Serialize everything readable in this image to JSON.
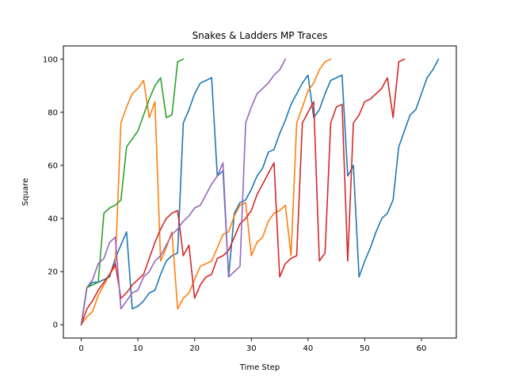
{
  "chart_data": {
    "type": "line",
    "title": "Snakes & Ladders MP Traces",
    "xlabel": "Time Step",
    "ylabel": "Square",
    "xlim": [
      -3.15,
      66.15
    ],
    "ylim": [
      -5,
      105
    ],
    "xticks": [
      0,
      10,
      20,
      30,
      40,
      50,
      60
    ],
    "yticks": [
      0,
      20,
      40,
      60,
      80,
      100
    ],
    "grid": false,
    "series": [
      {
        "color": "#1f77b4",
        "x": [
          0,
          1,
          2,
          3,
          4,
          5,
          6,
          7,
          8,
          9,
          10,
          11,
          12,
          13,
          14,
          15,
          16,
          17,
          18,
          19,
          20,
          21,
          22,
          23,
          24,
          25,
          26,
          27,
          28,
          29,
          30,
          31,
          32,
          33,
          34,
          35,
          36,
          37,
          38,
          39,
          40,
          41,
          42,
          43,
          44,
          45,
          46,
          47,
          48,
          49,
          50,
          51,
          52,
          53,
          54,
          55,
          56,
          57,
          58,
          59,
          60,
          61,
          62,
          63
        ],
        "values": [
          0,
          14,
          16,
          16,
          17,
          18,
          25,
          30,
          35,
          6,
          7,
          9,
          12,
          13,
          19,
          24,
          26,
          27,
          76,
          81,
          87,
          91,
          92,
          93,
          56,
          58,
          18,
          42,
          46,
          47,
          51,
          56,
          59,
          65,
          66,
          72,
          77,
          83,
          87,
          91,
          94,
          78,
          81,
          87,
          92,
          93,
          94,
          56,
          60,
          18,
          24,
          29,
          35,
          40,
          42,
          47,
          67,
          73,
          79,
          81,
          87,
          93,
          96,
          100
        ]
      },
      {
        "color": "#ff7f0e",
        "x": [
          0,
          1,
          2,
          3,
          4,
          5,
          6,
          7,
          8,
          9,
          10,
          11,
          12,
          13,
          14,
          15,
          16,
          17,
          18,
          19,
          20,
          21,
          22,
          23,
          24,
          25,
          26,
          27,
          28,
          29,
          30,
          31,
          32,
          33,
          34,
          35,
          36,
          37,
          38,
          39,
          40,
          41,
          42,
          43,
          44
        ],
        "values": [
          0,
          3,
          5,
          11,
          15,
          19,
          22,
          76,
          82,
          87,
          89,
          92,
          78,
          84,
          24,
          29,
          35,
          6,
          10,
          12,
          17,
          22,
          23,
          24,
          29,
          34,
          35,
          41,
          45,
          46,
          26,
          31,
          33,
          39,
          42,
          43,
          45,
          26,
          76,
          82,
          88,
          91,
          96,
          99,
          100
        ]
      },
      {
        "color": "#2ca02c",
        "x": [
          0,
          1,
          2,
          3,
          4,
          5,
          6,
          7,
          8,
          9,
          10,
          11,
          12,
          13,
          14,
          15,
          16,
          17,
          18
        ],
        "values": [
          0,
          14,
          15,
          16,
          42,
          44,
          45,
          47,
          67,
          70,
          73,
          79,
          85,
          90,
          93,
          78,
          79,
          99,
          100
        ]
      },
      {
        "color": "#d62728",
        "x": [
          0,
          1,
          2,
          3,
          4,
          5,
          6,
          7,
          8,
          9,
          10,
          11,
          12,
          13,
          14,
          15,
          16,
          17,
          18,
          19,
          20,
          21,
          22,
          23,
          24,
          25,
          26,
          27,
          28,
          29,
          30,
          31,
          32,
          33,
          34,
          35,
          36,
          37,
          38,
          39,
          40,
          41,
          42,
          43,
          44,
          45,
          46,
          47,
          48,
          49,
          50,
          51,
          52,
          53,
          54,
          55,
          56,
          57
        ],
        "values": [
          0,
          6,
          9,
          13,
          16,
          19,
          23,
          10,
          12,
          15,
          17,
          19,
          25,
          31,
          36,
          40,
          42,
          43,
          26,
          30,
          10,
          15,
          18,
          19,
          25,
          26,
          28,
          33,
          38,
          40,
          43,
          49,
          53,
          57,
          61,
          18,
          23,
          25,
          26,
          76,
          80,
          84,
          24,
          27,
          76,
          82,
          83,
          24,
          76,
          79,
          84,
          85,
          87,
          89,
          93,
          78,
          99,
          100
        ]
      },
      {
        "color": "#9467bd",
        "x": [
          0,
          1,
          2,
          3,
          4,
          5,
          6,
          7,
          8,
          9,
          10,
          11,
          12,
          13,
          14,
          15,
          16,
          17,
          18,
          19,
          20,
          21,
          22,
          23,
          24,
          25,
          26,
          27,
          28,
          29,
          30,
          31,
          32,
          33,
          34,
          35,
          36
        ],
        "values": [
          0,
          14,
          17,
          23,
          25,
          31,
          33,
          6,
          9,
          12,
          13,
          18,
          20,
          24,
          26,
          30,
          34,
          36,
          39,
          41,
          44,
          45,
          49,
          53,
          56,
          61,
          18,
          20,
          22,
          76,
          82,
          87,
          89,
          91,
          94,
          96,
          100
        ]
      }
    ]
  }
}
